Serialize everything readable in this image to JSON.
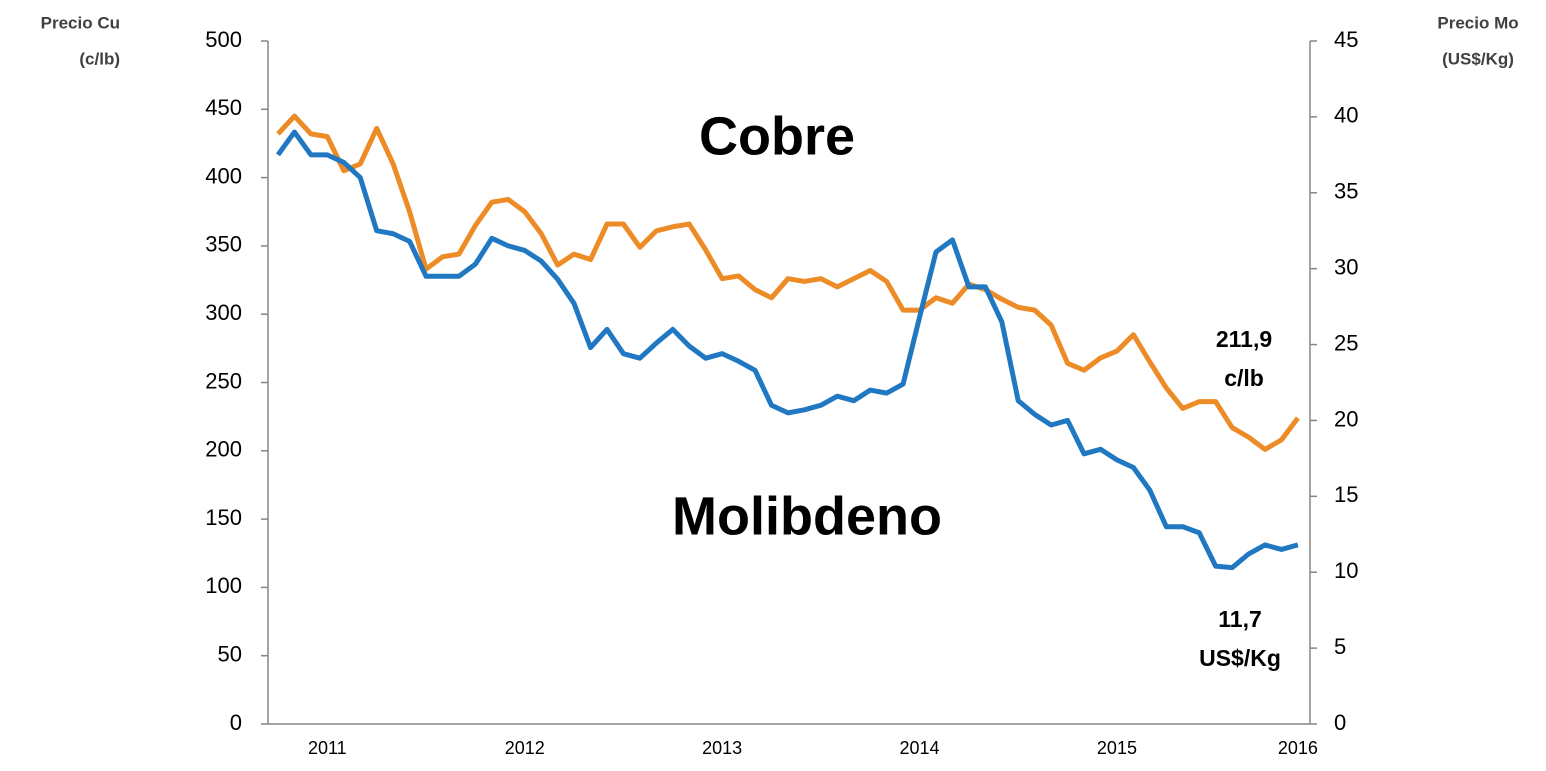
{
  "chart_data": {
    "type": "line",
    "y_label": [
      "Precio Cu",
      "(c/lb)"
    ],
    "y2_label": [
      "Precio Mo",
      "(US$/Kg)"
    ],
    "categories": [
      null,
      null,
      null,
      "2011",
      null,
      null,
      null,
      null,
      null,
      null,
      null,
      null,
      null,
      null,
      null,
      "2012",
      null,
      null,
      null,
      null,
      null,
      null,
      null,
      null,
      null,
      null,
      null,
      "2013",
      null,
      null,
      null,
      null,
      null,
      null,
      null,
      null,
      null,
      null,
      null,
      "2014",
      null,
      null,
      null,
      null,
      null,
      null,
      null,
      null,
      null,
      null,
      null,
      "2015",
      null,
      null,
      null,
      null,
      null,
      null,
      null,
      null,
      null,
      null,
      "2016"
    ],
    "series": [
      {
        "name": "Cobre",
        "color": "#ed8b26",
        "label_color": "#e46c0a",
        "axis": "y",
        "values": [
          432,
          445,
          432,
          430,
          405,
          410,
          436,
          410,
          375,
          333,
          342,
          344,
          365,
          382,
          384,
          375,
          359,
          336,
          344,
          340,
          366,
          366,
          349,
          361,
          364,
          366,
          347,
          326,
          328,
          318,
          312,
          326,
          324,
          326,
          320,
          326,
          332,
          324,
          303,
          303,
          312,
          308,
          322,
          318,
          311,
          305,
          303,
          292,
          264,
          259,
          268,
          273,
          285,
          265,
          246,
          231,
          236,
          236,
          217,
          210,
          201,
          208,
          224
        ]
      },
      {
        "name": "Molibdeno",
        "color": "#1f78c1",
        "label_color": "#1f6fb8",
        "axis": "y2",
        "values": [
          37.5,
          39,
          37.5,
          37.5,
          37,
          36,
          32.5,
          32.3,
          31.8,
          29.5,
          29.5,
          29.5,
          30.3,
          32,
          31.5,
          31.2,
          30.5,
          29.3,
          27.7,
          24.8,
          26,
          24.4,
          24.1,
          25.1,
          26,
          24.9,
          24.1,
          24.4,
          23.9,
          23.3,
          21,
          20.5,
          20.7,
          21,
          21.6,
          21.3,
          22,
          21.8,
          22.4,
          26.8,
          31.1,
          31.9,
          28.8,
          28.8,
          26.5,
          21.3,
          20.4,
          19.7,
          20,
          17.8,
          18.1,
          17.4,
          16.9,
          15.4,
          13,
          13,
          12.6,
          10.4,
          10.3,
          11.2,
          11.8,
          11.5,
          11.8
        ]
      }
    ],
    "annotations": [
      {
        "lines": [
          "211,9",
          "c/lb"
        ],
        "color": "#ed8b26"
      },
      {
        "lines": [
          "11,7",
          "US$/Kg"
        ],
        "color": "#1f78c1"
      }
    ],
    "ylim": [
      0,
      500
    ],
    "yticks": [
      0,
      50,
      100,
      150,
      200,
      250,
      300,
      350,
      400,
      450,
      500
    ],
    "y2lim": [
      0,
      45
    ],
    "y2ticks": [
      0,
      5,
      10,
      15,
      20,
      25,
      30,
      35,
      40,
      45
    ]
  }
}
